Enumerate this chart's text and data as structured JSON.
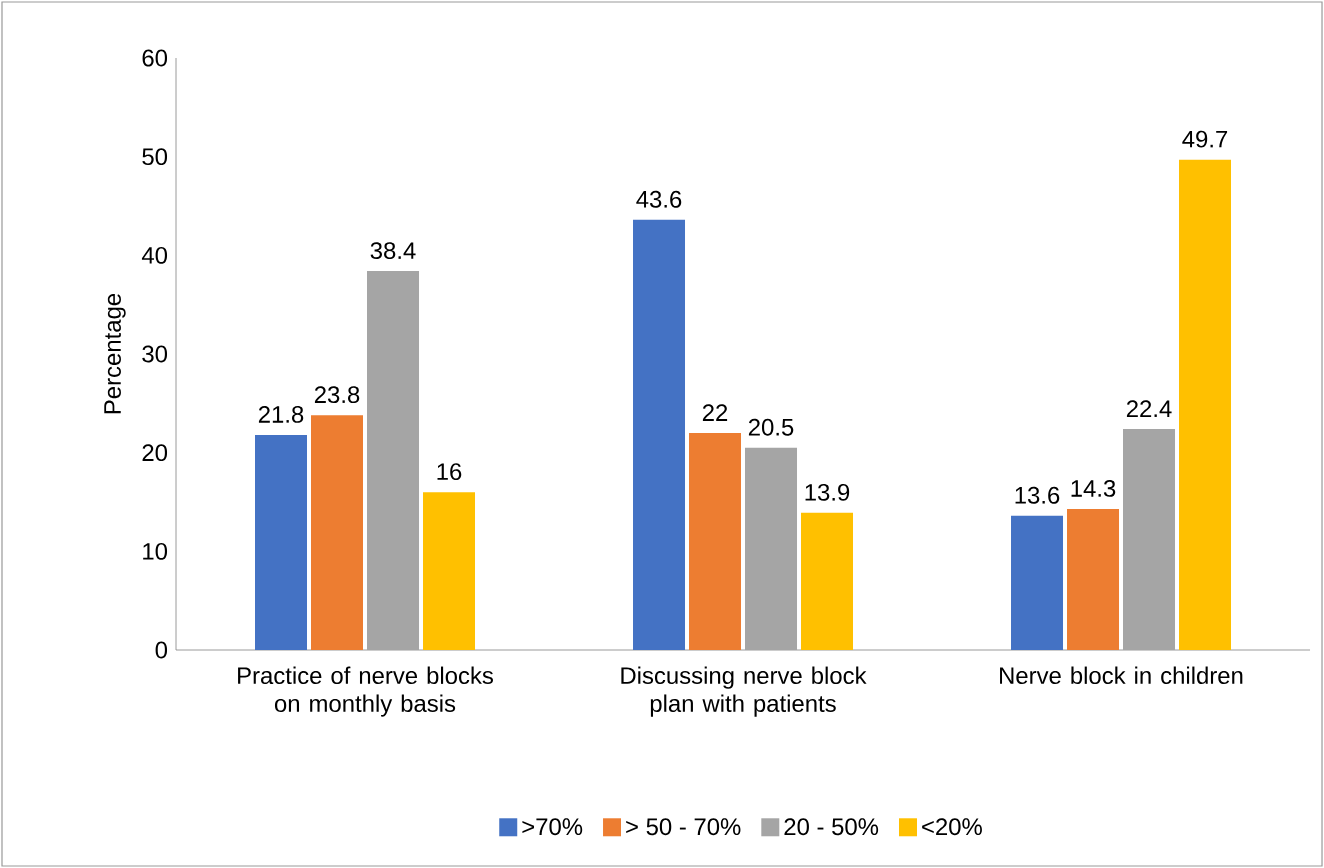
{
  "chart_data": {
    "type": "bar",
    "ylabel": "Percentage",
    "categories": [
      "Practice of nerve blocks on monthly basis",
      "Discussing nerve block plan with patients",
      "Nerve block in children"
    ],
    "series": [
      {
        "name": ">70%",
        "color": "#4472c4",
        "values": [
          21.8,
          43.6,
          13.6
        ]
      },
      {
        "name": "> 50 - 70%",
        "color": "#ed7d31",
        "values": [
          23.8,
          22,
          14.3
        ]
      },
      {
        "name": "20 - 50%",
        "color": "#a5a5a5",
        "values": [
          38.4,
          20.5,
          22.4
        ]
      },
      {
        "name": "<20%",
        "color": "#ffc000",
        "values": [
          16,
          13.9,
          49.7
        ]
      }
    ],
    "ylim": [
      0,
      60
    ],
    "yticks": [
      0,
      10,
      20,
      30,
      40,
      50,
      60
    ],
    "grid": false,
    "legend": "bottom",
    "data_labels": true
  }
}
